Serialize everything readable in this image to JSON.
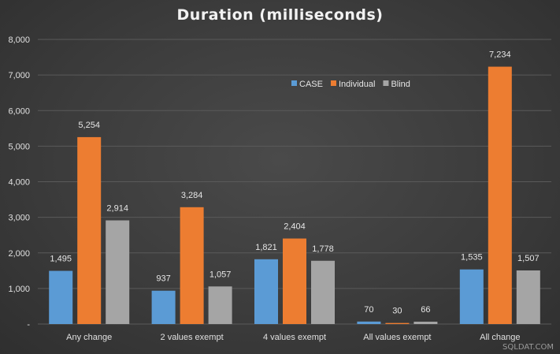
{
  "chart_data": {
    "type": "bar",
    "title": "Duration (milliseconds)",
    "xlabel": "",
    "ylabel": "",
    "categories": [
      "Any change",
      "2 values exempt",
      "4 values exempt",
      "All values exempt",
      "All change"
    ],
    "series": [
      {
        "name": "CASE",
        "values": [
          1495,
          937,
          1821,
          70,
          1535
        ],
        "labels": [
          "1,495",
          "937",
          "1,821",
          "70",
          "1,535"
        ]
      },
      {
        "name": "Individual",
        "values": [
          5254,
          3284,
          2404,
          30,
          7234
        ],
        "labels": [
          "5,254",
          "3,284",
          "2,404",
          "30",
          "7,234"
        ]
      },
      {
        "name": "Blind",
        "values": [
          2914,
          1057,
          1778,
          66,
          1507
        ],
        "labels": [
          "2,914",
          "1,057",
          "1,778",
          "66",
          "1,507"
        ]
      }
    ],
    "ylim": [
      0,
      8000
    ],
    "yticks": [
      {
        "value": 0,
        "label": "-"
      },
      {
        "value": 1000,
        "label": "1,000"
      },
      {
        "value": 2000,
        "label": "2,000"
      },
      {
        "value": 3000,
        "label": "3,000"
      },
      {
        "value": 4000,
        "label": "4,000"
      },
      {
        "value": 5000,
        "label": "5,000"
      },
      {
        "value": 6000,
        "label": "6,000"
      },
      {
        "value": 7000,
        "label": "7,000"
      },
      {
        "value": 8000,
        "label": "8,000"
      }
    ],
    "grid": true,
    "legend_position": "top-right",
    "colors": {
      "CASE": "#5b9bd5",
      "Individual": "#ed7d31",
      "Blind": "#a5a5a5"
    }
  },
  "watermark": "SQLDAT.COM"
}
